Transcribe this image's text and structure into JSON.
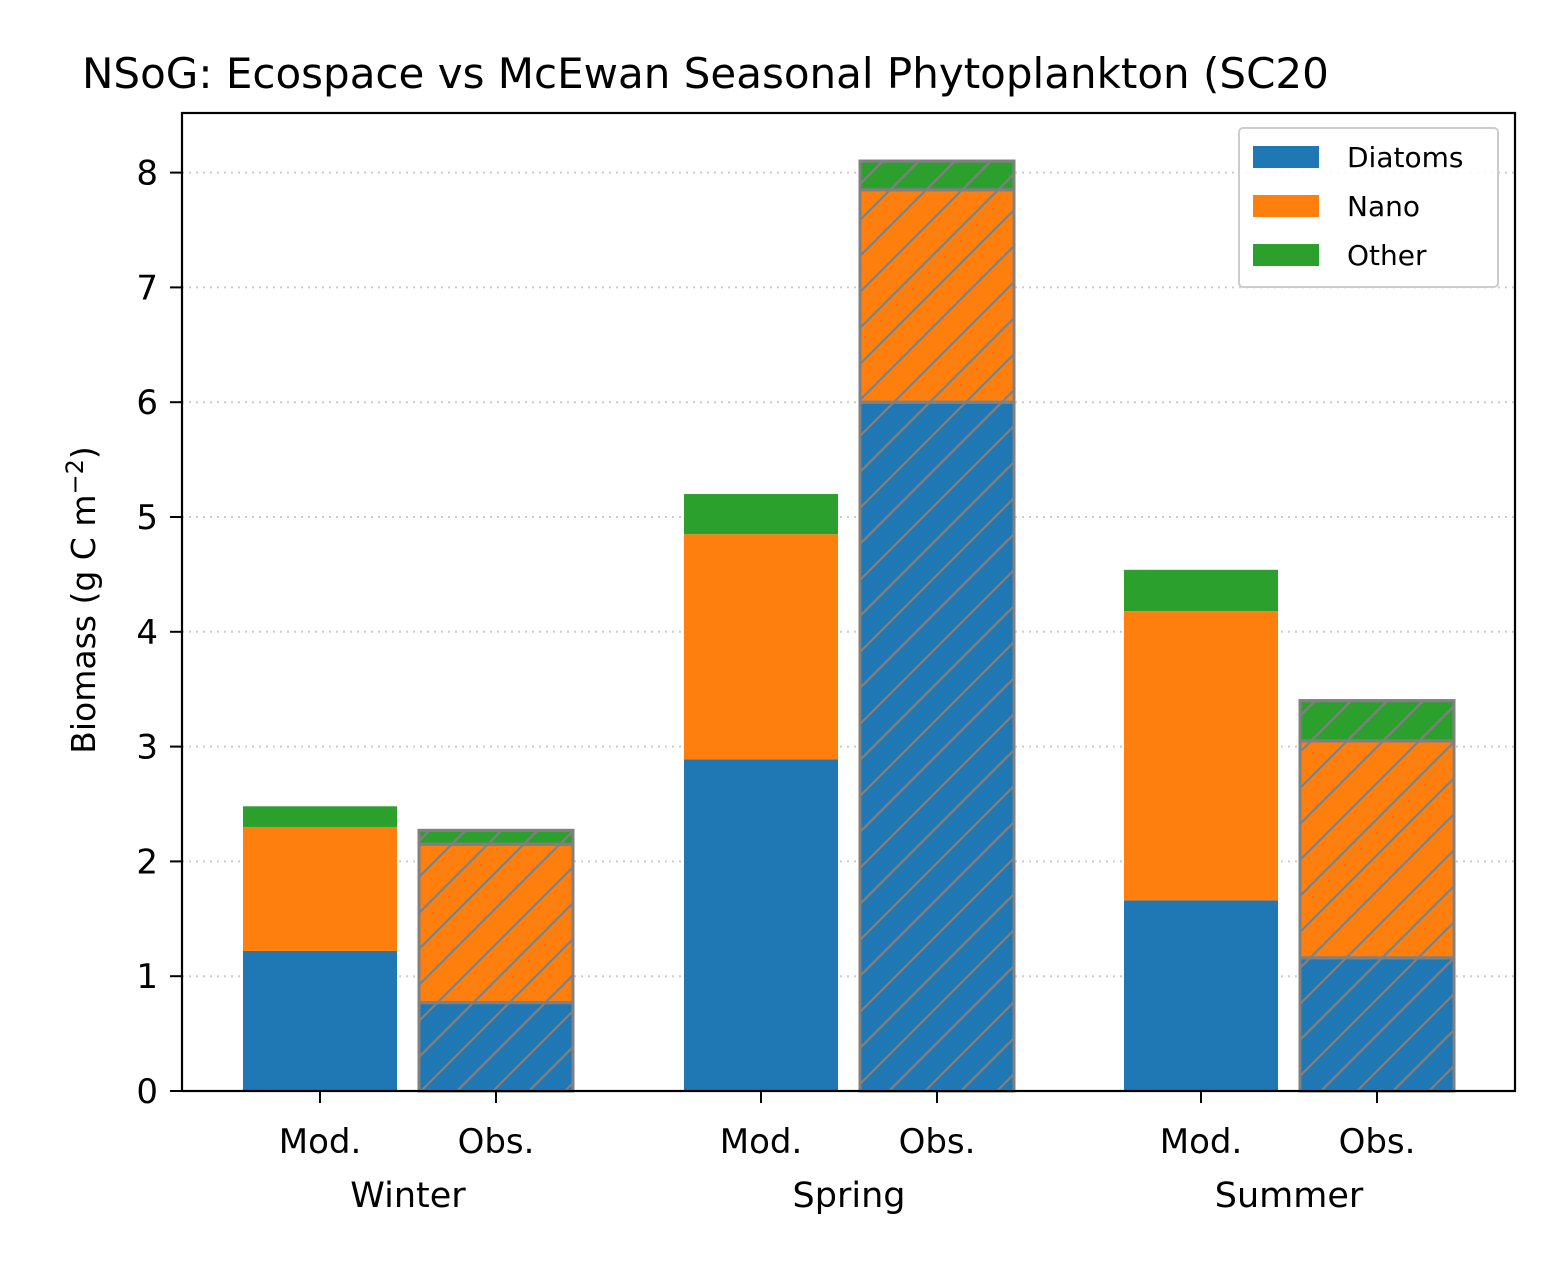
{
  "chart_data": {
    "type": "bar",
    "stacked": true,
    "title": "NSoG: Ecospace vs McEwan Seasonal Phytoplankton (SC20",
    "ylabel": "Biomass (g C m",
    "ylabel_sup": "−2",
    "ylabel_close": ")",
    "xlabel": "",
    "ylim": [
      0,
      8.5
    ],
    "yticks": [
      "0",
      "1",
      "2",
      "3",
      "4",
      "5",
      "6",
      "7",
      "8"
    ],
    "grid": "horizontal dotted",
    "legend_position": "top-right",
    "groups": [
      "Winter",
      "Spring",
      "Summer"
    ],
    "bar_labels": [
      "Mod.",
      "Obs."
    ],
    "hatched": "Obs.",
    "colors": {
      "Diatoms": "#1f77b4",
      "Nano": "#ff7f0e",
      "Other": "#2ca02c",
      "edge": "#808080"
    },
    "series": [
      {
        "name": "Diatoms",
        "values": [
          [
            1.22,
            0.77
          ],
          [
            2.89,
            6.0
          ],
          [
            1.66,
            1.16
          ]
        ]
      },
      {
        "name": "Nano",
        "values": [
          [
            1.08,
            1.38
          ],
          [
            1.96,
            1.85
          ],
          [
            2.52,
            1.89
          ]
        ]
      },
      {
        "name": "Other",
        "values": [
          [
            0.18,
            0.12
          ],
          [
            0.35,
            0.25
          ],
          [
            0.36,
            0.35
          ]
        ]
      }
    ]
  }
}
